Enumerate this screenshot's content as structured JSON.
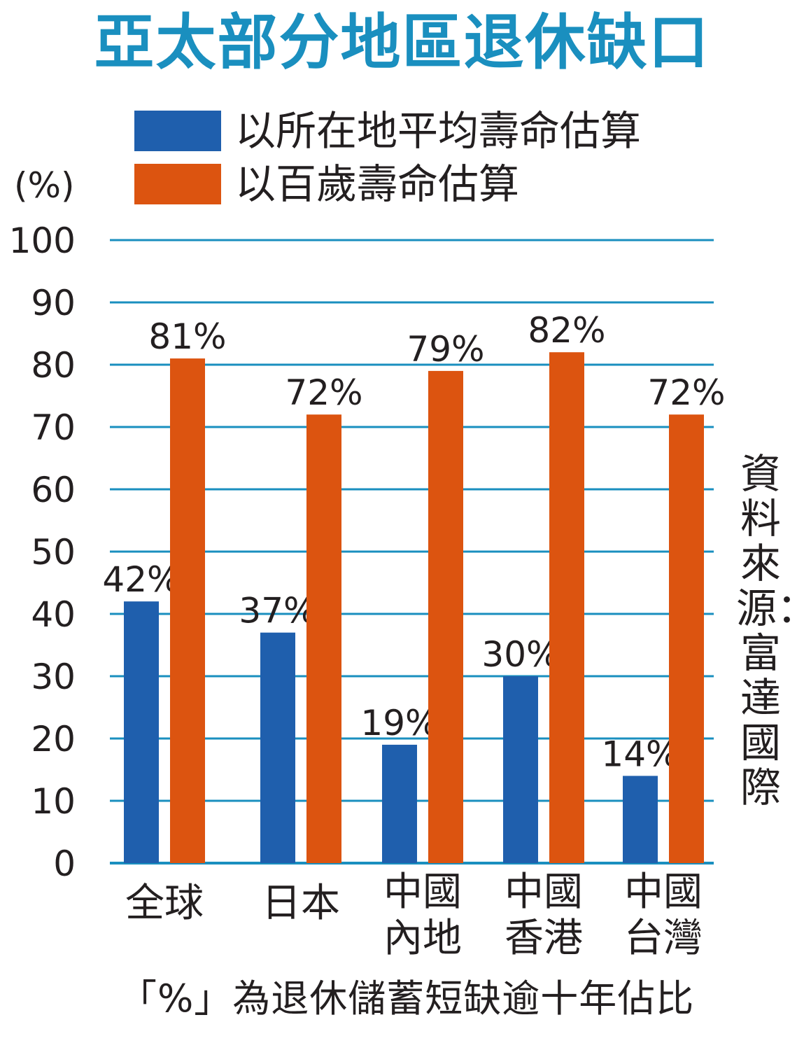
{
  "title": "亞太部分地區退休缺口",
  "unit_label": "(%)",
  "source": "資料來源：富達國際",
  "footnote": "「%」為退休儲蓄短缺逾十年佔比",
  "colors": {
    "blue": "#1f5fad",
    "orange": "#dc5410",
    "grid": "#1a8fbf",
    "title": "#1a8fbf"
  },
  "chart_data": {
    "type": "bar",
    "categories": [
      [
        "全球"
      ],
      [
        "日本"
      ],
      [
        "中國",
        "內地"
      ],
      [
        "中國",
        "香港"
      ],
      [
        "中國",
        "台灣"
      ]
    ],
    "series": [
      {
        "name": "以所在地平均壽命估算",
        "color": "#1f5fad",
        "values": [
          42,
          37,
          19,
          30,
          14
        ],
        "labels": [
          "42%",
          "37%",
          "19%",
          "30%",
          "14%"
        ]
      },
      {
        "name": "以百歲壽命估算",
        "color": "#dc5410",
        "values": [
          81,
          72,
          79,
          82,
          72
        ],
        "labels": [
          "81%",
          "72%",
          "79%",
          "82%",
          "72%"
        ]
      }
    ],
    "ylim": [
      0,
      100
    ],
    "yticks": [
      "0",
      "10",
      "20",
      "30",
      "40",
      "50",
      "60",
      "70",
      "80",
      "90",
      "100"
    ],
    "grid": true,
    "legend_position": "top-left"
  }
}
